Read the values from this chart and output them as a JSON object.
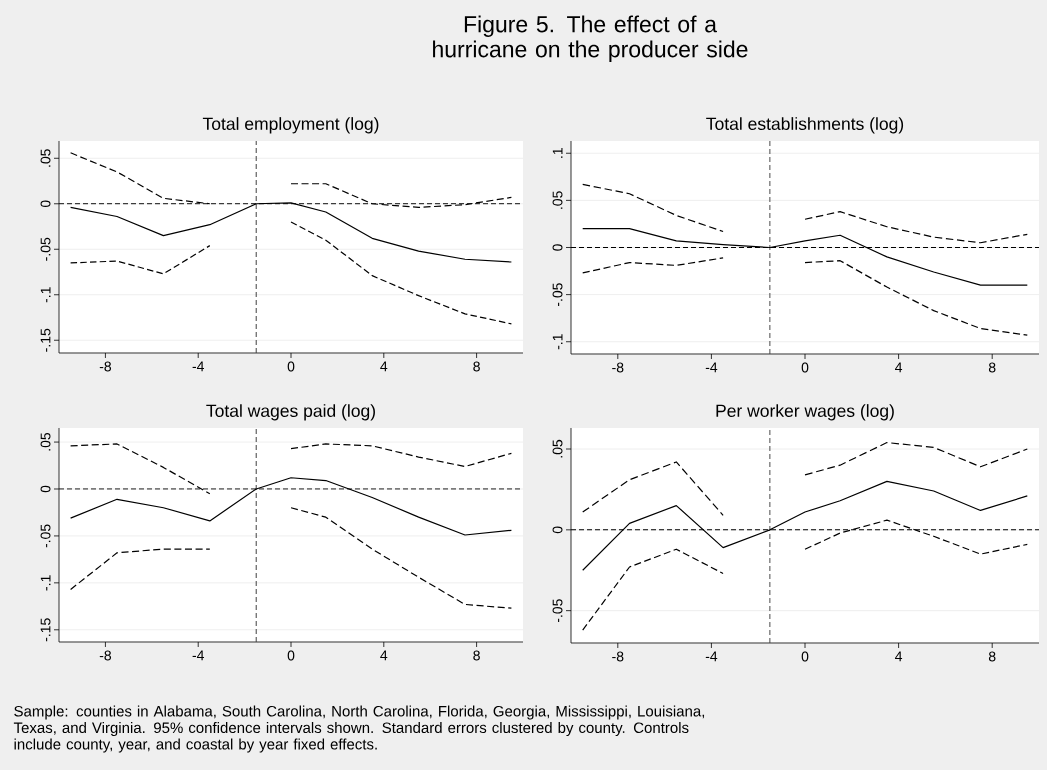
{
  "chart_data": [
    {
      "type": "other",
      "title": "Figure 5. The effect of a hurricane on the producer side",
      "annotations": [
        "Sample: counties in Alabama, South Carolina, North Carolina, Florida, Georgia, Mississippi, Louisiana, Texas, and Virginia. 95% confidence intervals shown. Standard errors clustered by county. Controls include county, year, and coastal by year fixed effects."
      ]
    },
    {
      "type": "line",
      "title": "Total employment (log)",
      "x": [
        -9.5,
        -7.5,
        -5.5,
        -3.5,
        -1.5,
        0,
        1.5,
        3.5,
        5.5,
        7.5,
        9.5
      ],
      "series": [
        {
          "color": "#000000",
          "line_style": "solid",
          "values": [
            -0.004,
            -0.014,
            -0.035,
            -0.023,
            0,
            0.001,
            -0.009,
            -0.038,
            -0.052,
            -0.061,
            -0.064
          ]
        },
        {
          "color": "#000000",
          "line_style": "dashed",
          "values": [
            0.056,
            0.035,
            0.006,
            0.0,
            null,
            0.022,
            0.022,
            0.0,
            -0.004,
            -0.001,
            0.007
          ]
        },
        {
          "color": "#000000",
          "line_style": "dashed",
          "values": [
            -0.065,
            -0.063,
            -0.077,
            -0.046,
            null,
            -0.02,
            -0.04,
            -0.079,
            -0.101,
            -0.121,
            -0.132
          ]
        }
      ],
      "xlim": [
        -10,
        10
      ],
      "ylim": [
        -0.164,
        0.069
      ],
      "xticks": [
        -8,
        -4,
        0,
        4,
        8
      ],
      "yticks": [
        {
          "value": -0.15,
          "label": "-.15"
        },
        {
          "value": -0.1,
          "label": "-.1"
        },
        {
          "value": -0.05,
          "label": "-.05"
        },
        0,
        {
          "value": 0.05,
          "label": ".05"
        }
      ],
      "grid": "y",
      "ref_lines": [
        {
          "axis": "x",
          "value": -1.5,
          "line_style": "dashed",
          "color": "#404040"
        },
        {
          "axis": "y",
          "value": 0,
          "line_style": "dashed",
          "color": "#000000"
        }
      ]
    },
    {
      "type": "line",
      "title": "Total establishments (log)",
      "x": [
        -9.5,
        -7.5,
        -5.5,
        -3.5,
        -1.5,
        0,
        1.5,
        3.5,
        5.5,
        7.5,
        9.5
      ],
      "series": [
        {
          "color": "#000000",
          "line_style": "solid",
          "values": [
            0.02,
            0.02,
            0.007,
            0.003,
            0,
            0.007,
            0.013,
            -0.01,
            -0.026,
            -0.04,
            -0.04
          ]
        },
        {
          "color": "#000000",
          "line_style": "dashed",
          "values": [
            0.067,
            0.057,
            0.034,
            0.017,
            null,
            0.03,
            0.038,
            0.022,
            0.011,
            0.005,
            0.014
          ]
        },
        {
          "color": "#000000",
          "line_style": "dashed",
          "values": [
            -0.027,
            -0.016,
            -0.019,
            -0.011,
            null,
            -0.016,
            -0.014,
            -0.042,
            -0.067,
            -0.086,
            -0.093
          ]
        }
      ],
      "xlim": [
        -10,
        10
      ],
      "ylim": [
        -0.113,
        0.113
      ],
      "xticks": [
        -8,
        -4,
        0,
        4,
        8
      ],
      "yticks": [
        {
          "value": -0.1,
          "label": "-.1"
        },
        {
          "value": -0.05,
          "label": "-.05"
        },
        0,
        {
          "value": 0.05,
          "label": ".05"
        },
        {
          "value": 0.1,
          "label": ".1"
        }
      ],
      "grid": "y",
      "ref_lines": [
        {
          "axis": "x",
          "value": -1.5,
          "line_style": "dashed",
          "color": "#404040"
        },
        {
          "axis": "y",
          "value": 0,
          "line_style": "dashed",
          "color": "#000000"
        }
      ]
    },
    {
      "type": "line",
      "title": "Total wages paid (log)",
      "x": [
        -9.5,
        -7.5,
        -5.5,
        -3.5,
        -1.5,
        0,
        1.5,
        3.5,
        5.5,
        7.5,
        9.5
      ],
      "series": [
        {
          "color": "#000000",
          "line_style": "solid",
          "values": [
            -0.031,
            -0.011,
            -0.02,
            -0.034,
            0,
            0.012,
            0.009,
            -0.009,
            -0.03,
            -0.049,
            -0.044
          ]
        },
        {
          "color": "#000000",
          "line_style": "dashed",
          "values": [
            0.046,
            0.048,
            0.023,
            -0.005,
            null,
            0.043,
            0.048,
            0.046,
            0.034,
            0.024,
            0.038
          ]
        },
        {
          "color": "#000000",
          "line_style": "dashed",
          "values": [
            -0.107,
            -0.068,
            -0.064,
            -0.064,
            null,
            -0.02,
            -0.03,
            -0.064,
            -0.094,
            -0.123,
            -0.127
          ]
        }
      ],
      "xlim": [
        -10,
        10
      ],
      "ylim": [
        -0.163,
        0.065
      ],
      "xticks": [
        -8,
        -4,
        0,
        4,
        8
      ],
      "yticks": [
        {
          "value": -0.15,
          "label": "-.15"
        },
        {
          "value": -0.1,
          "label": "-.1"
        },
        {
          "value": -0.05,
          "label": "-.05"
        },
        0,
        {
          "value": 0.05,
          "label": ".05"
        }
      ],
      "grid": "y",
      "ref_lines": [
        {
          "axis": "x",
          "value": -1.5,
          "line_style": "dashed",
          "color": "#404040"
        },
        {
          "axis": "y",
          "value": 0,
          "line_style": "dashed",
          "color": "#000000"
        }
      ]
    },
    {
      "type": "line",
      "title": "Per worker wages (log)",
      "x": [
        -9.5,
        -7.5,
        -5.5,
        -3.5,
        -1.5,
        0,
        1.5,
        3.5,
        5.5,
        7.5,
        9.5
      ],
      "series": [
        {
          "color": "#000000",
          "line_style": "solid",
          "values": [
            -0.025,
            0.004,
            0.015,
            -0.011,
            0,
            0.011,
            0.018,
            0.03,
            0.024,
            0.012,
            0.021
          ]
        },
        {
          "color": "#000000",
          "line_style": "dashed",
          "values": [
            0.011,
            0.031,
            0.042,
            0.009,
            null,
            0.034,
            0.04,
            0.054,
            0.051,
            0.039,
            0.05
          ]
        },
        {
          "color": "#000000",
          "line_style": "dashed",
          "values": [
            -0.062,
            -0.023,
            -0.012,
            -0.027,
            null,
            -0.012,
            -0.002,
            0.006,
            -0.004,
            -0.015,
            -0.009
          ]
        }
      ],
      "xlim": [
        -10,
        10
      ],
      "ylim": [
        -0.07,
        0.063
      ],
      "xticks": [
        -8,
        -4,
        0,
        4,
        8
      ],
      "yticks": [
        {
          "value": -0.05,
          "label": "-.05"
        },
        0,
        {
          "value": 0.05,
          "label": ".05"
        }
      ],
      "grid": "y",
      "ref_lines": [
        {
          "axis": "x",
          "value": -1.5,
          "line_style": "dashed",
          "color": "#404040"
        },
        {
          "axis": "y",
          "value": 0,
          "line_style": "dashed",
          "color": "#000000"
        }
      ]
    }
  ]
}
